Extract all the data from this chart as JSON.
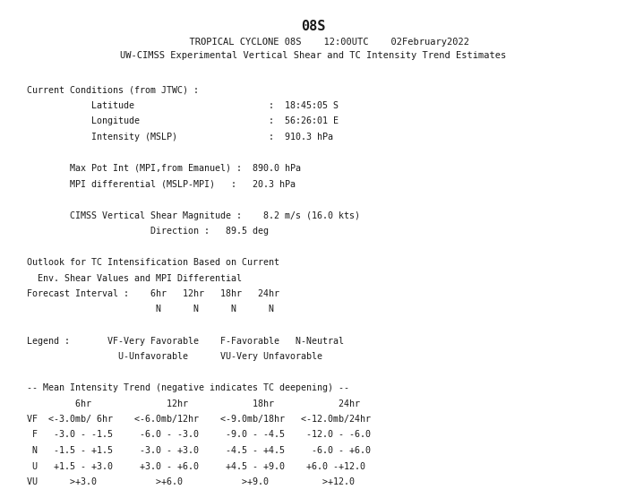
{
  "title": "08S",
  "line1": "      TROPICAL CYCLONE 08S    12:00UTC    02February2022",
  "line2": "UW-CIMSS Experimental Vertical Shear and TC Intensity Trend Estimates",
  "background_color": "#ffffff",
  "text_color": "#1a1a1a",
  "font_family": "monospace",
  "title_fontsize": 11,
  "header_fontsize": 7.5,
  "body_fontsize": 7.2,
  "content_lines": [
    "",
    "  Current Conditions (from JTWC) :",
    "              Latitude                         :  18:45:05 S",
    "              Longitude                        :  56:26:01 E",
    "              Intensity (MSLP)                 :  910.3 hPa",
    "",
    "          Max Pot Int (MPI,from Emanuel) :  890.0 hPa",
    "          MPI differential (MSLP-MPI)   :   20.3 hPa",
    "",
    "          CIMSS Vertical Shear Magnitude :    8.2 m/s (16.0 kts)",
    "                         Direction :   89.5 deg",
    "",
    "  Outlook for TC Intensification Based on Current",
    "    Env. Shear Values and MPI Differential",
    "  Forecast Interval :    6hr   12hr   18hr   24hr",
    "                          N      N      N      N",
    "",
    "  Legend :       VF-Very Favorable    F-Favorable   N-Neutral",
    "                   U-Unfavorable      VU-Very Unfavorable",
    "",
    "  -- Mean Intensity Trend (negative indicates TC deepening) --",
    "           6hr              12hr            18hr            24hr",
    "  VF  <-3.0mb/ 6hr    <-6.0mb/12hr    <-9.0mb/18hr   <-12.0mb/24hr",
    "   F   -3.0 - -1.5     -6.0 - -3.0     -9.0 - -4.5    -12.0 - -6.0",
    "   N   -1.5 - +1.5     -3.0 - +3.0     -4.5 - +4.5     -6.0 - +6.0",
    "   U   +1.5 - +3.0     +3.0 - +6.0     +4.5 - +9.0    +6.0 -+12.0",
    "  VU      >+3.0           >+6.0           >+9.0          >+12.0"
  ]
}
